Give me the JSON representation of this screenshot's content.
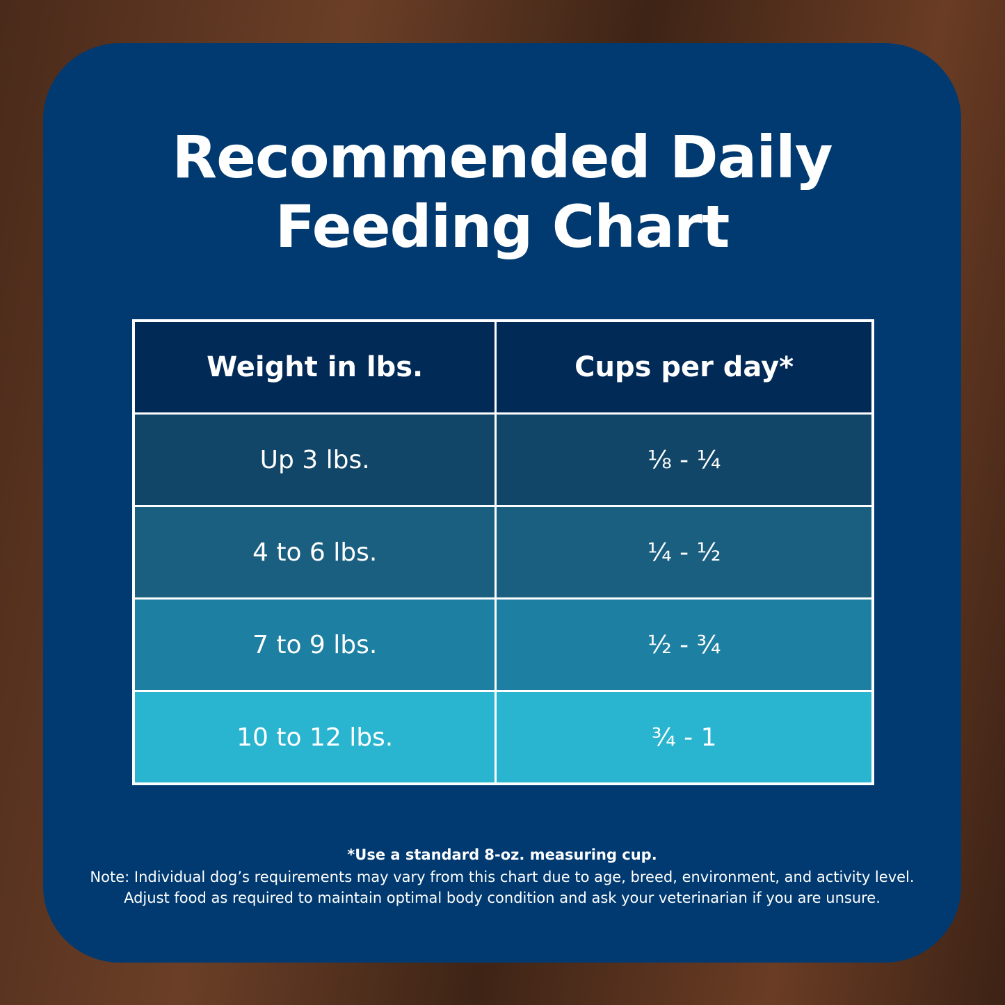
{
  "title": {
    "line1": "Recommended Daily",
    "line2": "Feeding Chart"
  },
  "table": {
    "header": [
      "Weight in lbs.",
      "Cups per day*"
    ],
    "rows": [
      [
        "Up 3 lbs.",
        "⅛ - ¼"
      ],
      [
        "4 to 6 lbs.",
        "¼ - ½"
      ],
      [
        "7 to 9 lbs.",
        "½ - ¾"
      ],
      [
        "10 to 12 lbs.",
        "¾ - 1"
      ]
    ]
  },
  "footer": {
    "cup_note": "*Use a standard 8-oz. measuring cup.",
    "note1": "Note: Individual dog’s requirements may vary from this chart due to age, breed, environment, and activity level.",
    "note2": "Adjust food as required to maintain optimal body condition and ask your veterinarian if you are unsure."
  }
}
